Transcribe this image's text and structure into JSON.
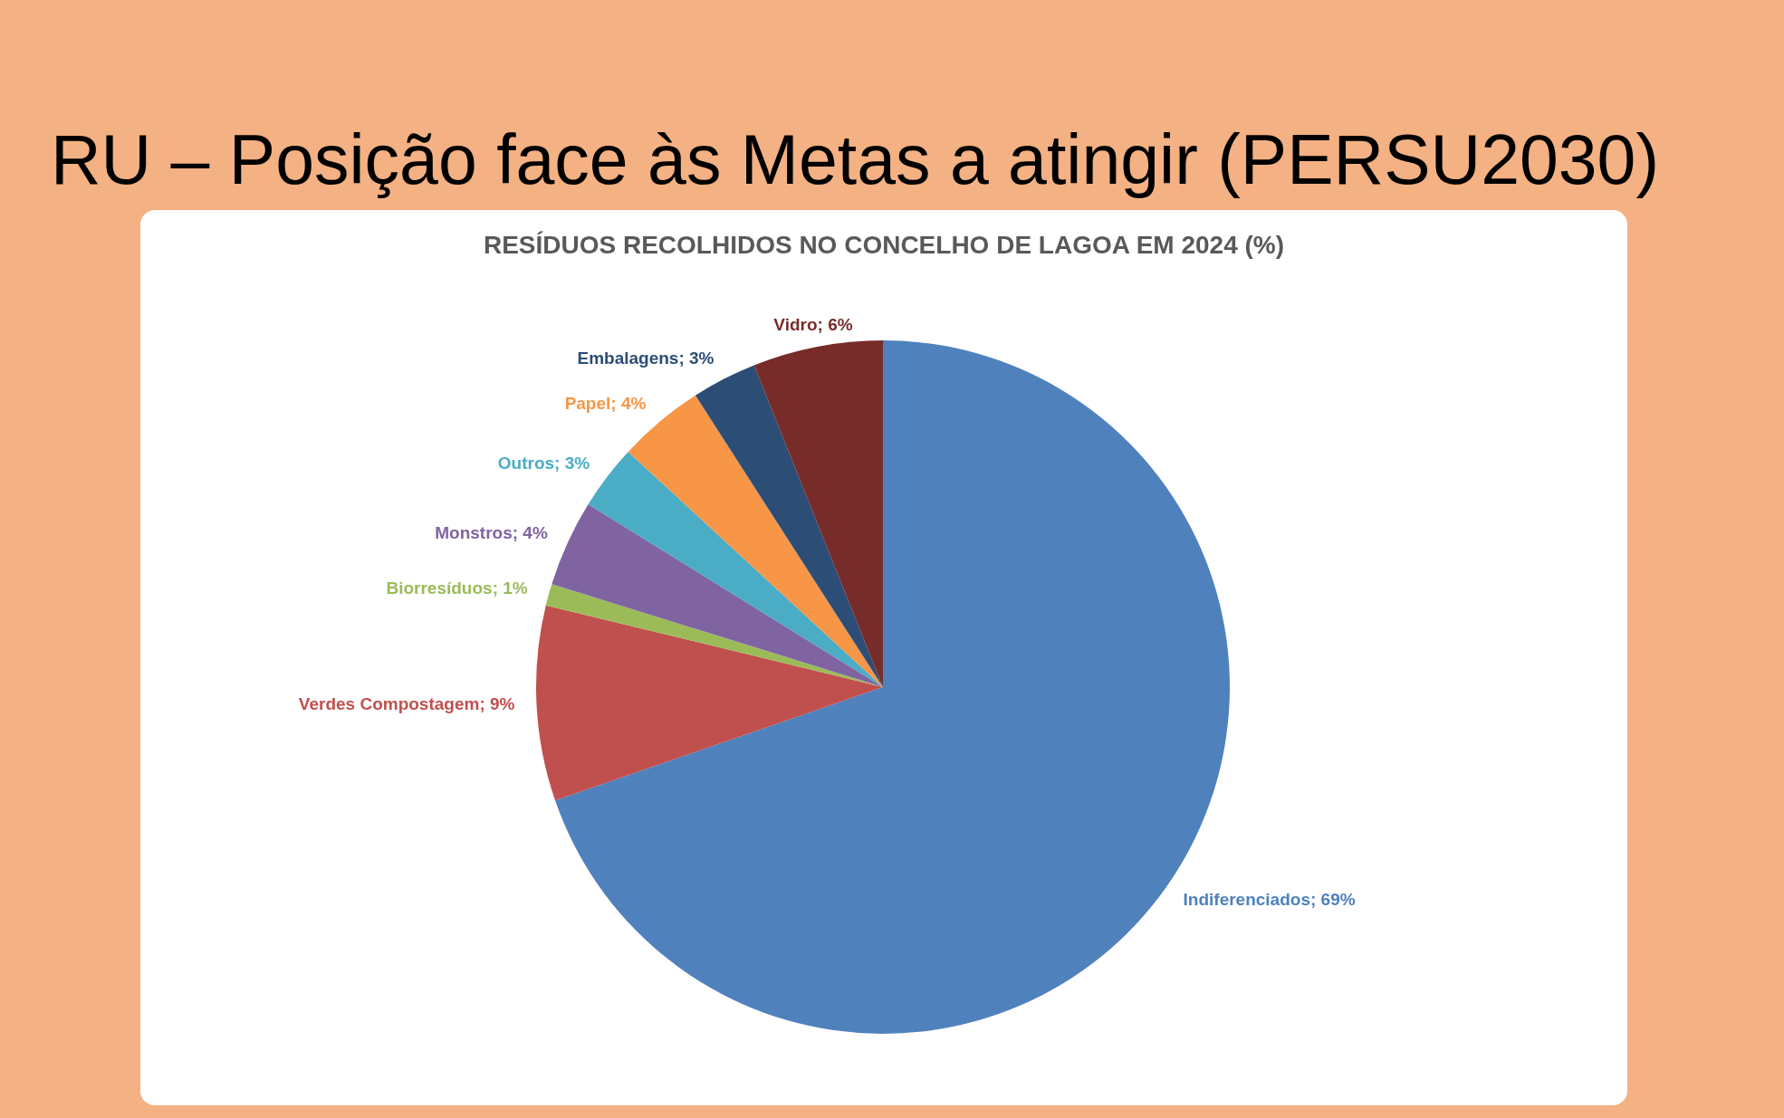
{
  "chart_data": {
    "type": "pie",
    "title": "RU – Posição face às Metas a atingir (PERSU2030)",
    "subtitle": "RESÍDUOS RECOLHIDOS NO CONCELHO DE LAGOA EM 2024 (%)",
    "categories": [
      "Indiferenciados",
      "Verdes Compostagem",
      "Biorresíduos",
      "Monstros",
      "Outros",
      "Papel",
      "Embalagens",
      "Vidro"
    ],
    "values": [
      69,
      9,
      1,
      4,
      3,
      4,
      3,
      6
    ],
    "colors": [
      "#4f81bd",
      "#c0504d",
      "#9bbb59",
      "#8064a2",
      "#4bacc6",
      "#f79646",
      "#2c4d75",
      "#772c2a"
    ],
    "value_labels": [
      "; 69%",
      "; 9%",
      "; 1%",
      "; 4%",
      "; 3%",
      "; 4%",
      "; 3%",
      "; 6%"
    ]
  }
}
